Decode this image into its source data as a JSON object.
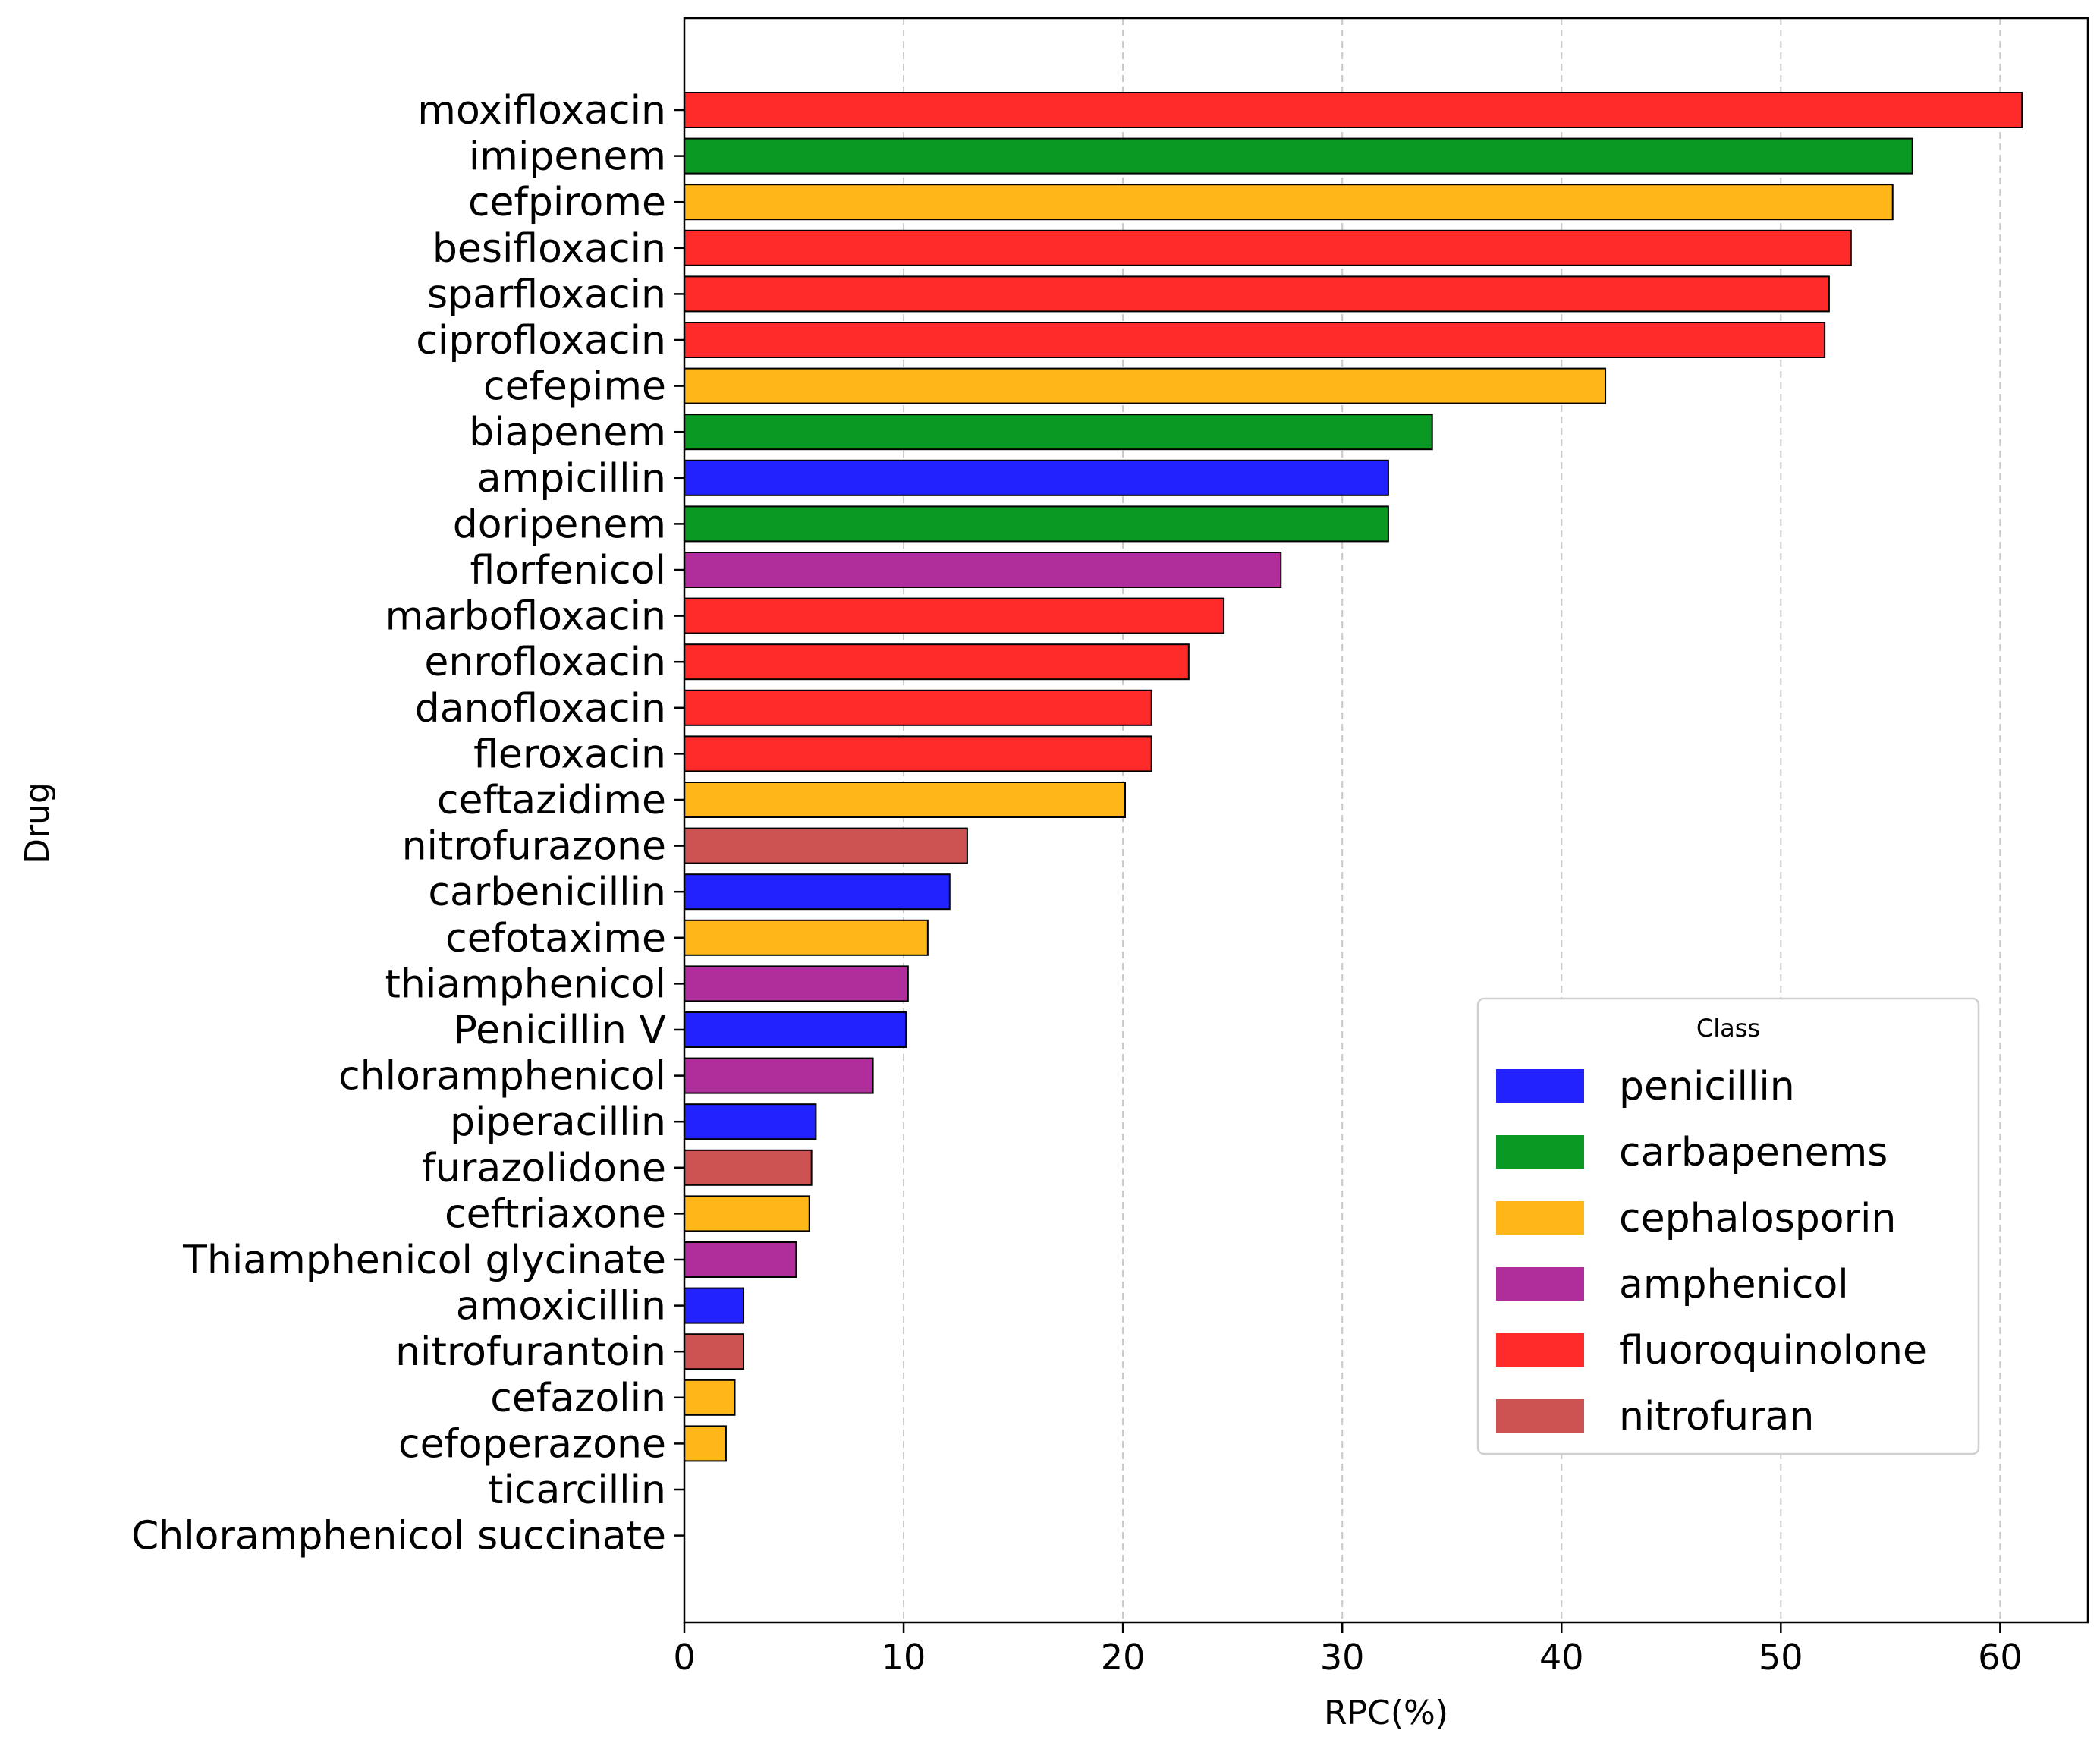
{
  "chart_data": {
    "type": "bar",
    "orientation": "horizontal",
    "xlabel": "RPC(%)",
    "ylabel": "Drug",
    "xlim": [
      0,
      64
    ],
    "xticks": [
      0,
      10,
      20,
      30,
      40,
      50,
      60
    ],
    "grid": "x-dashed",
    "legend": {
      "title": "Class",
      "placement": "lower-right",
      "entries": [
        {
          "name": "penicillin",
          "color": "#2222ff"
        },
        {
          "name": "carbapenems",
          "color": "#0a9a23"
        },
        {
          "name": "cephalosporin",
          "color": "#ffb619"
        },
        {
          "name": "amphenicol",
          "color": "#b02d9c"
        },
        {
          "name": "fluoroquinolone",
          "color": "#ff2a2a"
        },
        {
          "name": "nitrofuran",
          "color": "#cd5252"
        }
      ]
    },
    "bars": [
      {
        "drug": "moxifloxacin",
        "value": 61.0,
        "class": "fluoroquinolone"
      },
      {
        "drug": "imipenem",
        "value": 56.0,
        "class": "carbapenems"
      },
      {
        "drug": "cefpirome",
        "value": 55.1,
        "class": "cephalosporin"
      },
      {
        "drug": "besifloxacin",
        "value": 53.2,
        "class": "fluoroquinolone"
      },
      {
        "drug": "sparfloxacin",
        "value": 52.2,
        "class": "fluoroquinolone"
      },
      {
        "drug": "ciprofloxacin",
        "value": 52.0,
        "class": "fluoroquinolone"
      },
      {
        "drug": "cefepime",
        "value": 42.0,
        "class": "cephalosporin"
      },
      {
        "drug": "biapenem",
        "value": 34.1,
        "class": "carbapenems"
      },
      {
        "drug": "ampicillin",
        "value": 32.1,
        "class": "penicillin"
      },
      {
        "drug": "doripenem",
        "value": 32.1,
        "class": "carbapenems"
      },
      {
        "drug": "florfenicol",
        "value": 27.2,
        "class": "amphenicol"
      },
      {
        "drug": "marbofloxacin",
        "value": 24.6,
        "class": "fluoroquinolone"
      },
      {
        "drug": "enrofloxacin",
        "value": 23.0,
        "class": "fluoroquinolone"
      },
      {
        "drug": "danofloxacin",
        "value": 21.3,
        "class": "fluoroquinolone"
      },
      {
        "drug": "fleroxacin",
        "value": 21.3,
        "class": "fluoroquinolone"
      },
      {
        "drug": "ceftazidime",
        "value": 20.1,
        "class": "cephalosporin"
      },
      {
        "drug": "nitrofurazone",
        "value": 12.9,
        "class": "nitrofuran"
      },
      {
        "drug": "carbenicillin",
        "value": 12.1,
        "class": "penicillin"
      },
      {
        "drug": "cefotaxime",
        "value": 11.1,
        "class": "cephalosporin"
      },
      {
        "drug": "thiamphenicol",
        "value": 10.2,
        "class": "amphenicol"
      },
      {
        "drug": "Penicillin V",
        "value": 10.1,
        "class": "penicillin"
      },
      {
        "drug": "chloramphenicol",
        "value": 8.6,
        "class": "amphenicol"
      },
      {
        "drug": "piperacillin",
        "value": 6.0,
        "class": "penicillin"
      },
      {
        "drug": "furazolidone",
        "value": 5.8,
        "class": "nitrofuran"
      },
      {
        "drug": "ceftriaxone",
        "value": 5.7,
        "class": "cephalosporin"
      },
      {
        "drug": "Thiamphenicol glycinate",
        "value": 5.1,
        "class": "amphenicol"
      },
      {
        "drug": "amoxicillin",
        "value": 2.7,
        "class": "penicillin"
      },
      {
        "drug": "nitrofurantoin",
        "value": 2.7,
        "class": "nitrofuran"
      },
      {
        "drug": "cefazolin",
        "value": 2.3,
        "class": "cephalosporin"
      },
      {
        "drug": "cefoperazone",
        "value": 1.9,
        "class": "cephalosporin"
      },
      {
        "drug": "ticarcillin",
        "value": 0,
        "class": "penicillin"
      },
      {
        "drug": "Chloramphenicol succinate",
        "value": 0,
        "class": "amphenicol"
      }
    ]
  }
}
